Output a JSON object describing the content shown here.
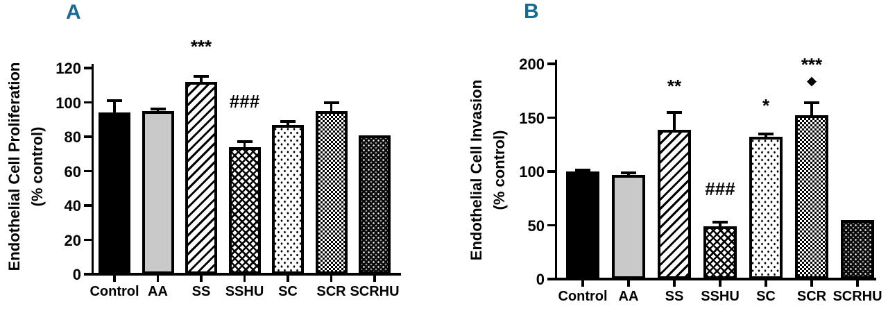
{
  "figure": {
    "panel_label_color": "#176b93",
    "axis_color": "#000000",
    "background_color": "#ffffff"
  },
  "chart_data": [
    {
      "type": "bar",
      "panel_label": "A",
      "ylabel_line1": "Endothelial Cell Proliferation",
      "ylabel_line2": "(% control)",
      "categories": [
        "Control",
        "AA",
        "SS",
        "SSHU",
        "SC",
        "SCR",
        "SCRHU"
      ],
      "values": [
        94,
        95,
        112,
        74,
        87,
        95,
        81
      ],
      "errors": [
        7,
        1,
        3,
        3,
        2,
        5,
        0
      ],
      "annotations": [
        null,
        null,
        {
          "lines": [
            "***"
          ],
          "dy": 30
        },
        {
          "lines": [
            "###"
          ],
          "dy": 45
        },
        null,
        null,
        null
      ],
      "patterns": [
        "solid-black",
        "solid-gray",
        "diag",
        "weave",
        "dots",
        "checker",
        "darkweave"
      ],
      "bar_fill_descriptions": [
        "solid black",
        "solid light gray",
        "diagonal hatch",
        "diagonal crosshatch weave",
        "sparse black dots on white",
        "fine black-white checkerboard",
        "dark weave with white specks"
      ],
      "ylim": [
        0,
        120
      ],
      "yticks": [
        0,
        20,
        40,
        60,
        80,
        100,
        120
      ],
      "grid": false,
      "legend": null
    },
    {
      "type": "bar",
      "panel_label": "B",
      "ylabel_line1": "Endothelial Cell Invasion",
      "ylabel_line2": "(% control)",
      "categories": [
        "Control",
        "AA",
        "SS",
        "SSHU",
        "SC",
        "SCR",
        "SCRHU"
      ],
      "values": [
        100,
        97,
        139,
        49,
        132,
        152,
        55
      ],
      "errors": [
        1,
        2,
        16,
        4,
        3,
        12,
        0
      ],
      "annotations": [
        null,
        null,
        {
          "lines": [
            "**"
          ],
          "dy": 25
        },
        {
          "lines": [
            "###"
          ],
          "dy": 35
        },
        {
          "lines": [
            "*"
          ],
          "dy": 28
        },
        {
          "lines": [
            "***",
            "◆"
          ],
          "dy": 20
        },
        null
      ],
      "patterns": [
        "solid-black",
        "solid-gray",
        "diag",
        "weave",
        "dots",
        "checker",
        "darkweave"
      ],
      "bar_fill_descriptions": [
        "solid black",
        "solid light gray",
        "diagonal hatch",
        "diagonal crosshatch weave",
        "sparse black dots on white",
        "fine black-white checkerboard",
        "dark weave with white specks"
      ],
      "ylim": [
        0,
        200
      ],
      "yticks": [
        0,
        50,
        100,
        150,
        200
      ],
      "grid": false,
      "legend": null
    }
  ]
}
